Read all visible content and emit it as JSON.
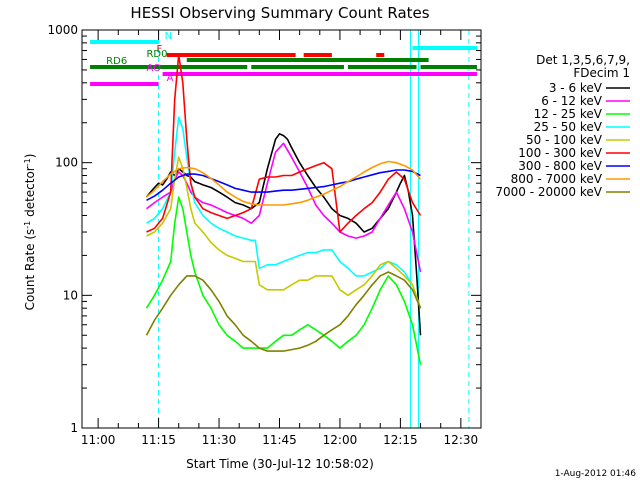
{
  "chart_data": {
    "type": "line",
    "title": "HESSI Observing Summary Count Rates",
    "xlabel": "Start Time (30-Jul-12 10:58:02)",
    "ylabel_main": "Count Rate (s",
    "ylabel_sup1": "-1",
    "ylabel_mid": " detector",
    "ylabel_sup2": "-1",
    "ylabel_end": ")",
    "yscale": "log",
    "ylim": [
      1,
      1000
    ],
    "xlim_minutes": [
      -4,
      95
    ],
    "x_ticks": [
      {
        "m": 0,
        "label": "11:00"
      },
      {
        "m": 15,
        "label": "11:15"
      },
      {
        "m": 30,
        "label": "11:30"
      },
      {
        "m": 45,
        "label": "11:45"
      },
      {
        "m": 60,
        "label": "12:00"
      },
      {
        "m": 75,
        "label": "12:15"
      },
      {
        "m": 90,
        "label": "12:30"
      }
    ],
    "y_ticks": [
      {
        "v": 1,
        "label": "1"
      },
      {
        "v": 10,
        "label": "10"
      },
      {
        "v": 100,
        "label": "100"
      },
      {
        "v": 1000,
        "label": "1000"
      }
    ],
    "legend_header": [
      "Det 1,3,5,6,7,9,",
      "FDecim 1"
    ],
    "legend_position": "right",
    "series": [
      {
        "name": "3 - 6 keV",
        "color": "#000000",
        "x": [
          12,
          13,
          14,
          15,
          16,
          17,
          18,
          19,
          20,
          21,
          22,
          23,
          24,
          25,
          26,
          28,
          30,
          32,
          34,
          36,
          38,
          40,
          42,
          44,
          45,
          46,
          47,
          48,
          50,
          52,
          54,
          56,
          58,
          60,
          62,
          64,
          66,
          68,
          70,
          72,
          74,
          75,
          76,
          77,
          78,
          79,
          80
        ],
        "y": [
          55,
          60,
          65,
          70,
          68,
          75,
          85,
          80,
          90,
          85,
          80,
          78,
          72,
          70,
          68,
          65,
          60,
          55,
          50,
          48,
          45,
          50,
          90,
          150,
          165,
          160,
          150,
          130,
          100,
          80,
          65,
          55,
          45,
          40,
          38,
          35,
          30,
          32,
          38,
          45,
          60,
          70,
          80,
          60,
          40,
          15,
          5
        ]
      },
      {
        "name": "6 - 12 keV",
        "color": "#ff00ff",
        "x": [
          12,
          14,
          16,
          18,
          19,
          20,
          21,
          22,
          23,
          24,
          26,
          28,
          30,
          32,
          34,
          36,
          38,
          40,
          42,
          44,
          46,
          48,
          50,
          52,
          54,
          56,
          58,
          60,
          62,
          64,
          66,
          68,
          70,
          72,
          74,
          76,
          78,
          80
        ],
        "y": [
          45,
          50,
          55,
          60,
          75,
          85,
          80,
          70,
          60,
          55,
          50,
          48,
          45,
          42,
          40,
          38,
          35,
          40,
          70,
          120,
          140,
          110,
          85,
          65,
          48,
          40,
          35,
          30,
          28,
          27,
          28,
          30,
          38,
          48,
          60,
          45,
          30,
          15
        ]
      },
      {
        "name": "12 - 25 keV",
        "color": "#00ff00",
        "x": [
          12,
          14,
          16,
          18,
          19,
          20,
          21,
          22,
          23,
          24,
          26,
          28,
          30,
          32,
          34,
          36,
          38,
          40,
          42,
          44,
          46,
          48,
          50,
          52,
          54,
          56,
          58,
          60,
          62,
          64,
          66,
          68,
          70,
          72,
          74,
          76,
          78,
          80
        ],
        "y": [
          8,
          10,
          13,
          18,
          35,
          55,
          45,
          30,
          20,
          15,
          10,
          8,
          6,
          5,
          4.5,
          4,
          4,
          4,
          4,
          4.5,
          5,
          5,
          5.5,
          6,
          5.5,
          5,
          4.5,
          4,
          4.5,
          5,
          6,
          8,
          11,
          14,
          12,
          9,
          6,
          3
        ]
      },
      {
        "name": "25 - 50 keV",
        "color": "#00ffff",
        "x": [
          12,
          14,
          16,
          18,
          19,
          20,
          21,
          22,
          23,
          24,
          26,
          28,
          30,
          32,
          34,
          36,
          38,
          39,
          40,
          42,
          44,
          46,
          48,
          50,
          52,
          54,
          56,
          58,
          60,
          62,
          64,
          66,
          68,
          70,
          72,
          74,
          76,
          78,
          80
        ],
        "y": [
          35,
          38,
          45,
          60,
          120,
          220,
          180,
          110,
          70,
          50,
          40,
          35,
          32,
          30,
          28,
          27,
          26,
          26,
          16,
          17,
          17,
          18,
          19,
          20,
          21,
          21,
          22,
          22,
          18,
          16,
          14,
          14,
          15,
          16,
          18,
          17,
          15,
          12,
          8
        ]
      },
      {
        "name": "50 - 100 keV",
        "color": "#c8c800",
        "x": [
          12,
          14,
          16,
          18,
          19,
          20,
          21,
          22,
          23,
          24,
          26,
          28,
          30,
          32,
          34,
          36,
          38,
          39,
          40,
          42,
          44,
          46,
          48,
          50,
          52,
          54,
          56,
          58,
          60,
          62,
          64,
          66,
          68,
          70,
          72,
          74,
          76,
          78,
          80
        ],
        "y": [
          28,
          30,
          35,
          45,
          75,
          110,
          90,
          65,
          45,
          35,
          30,
          25,
          22,
          20,
          19,
          18,
          18,
          18,
          12,
          11,
          11,
          11,
          12,
          13,
          13,
          14,
          14,
          14,
          11,
          10,
          11,
          12,
          14,
          17,
          18,
          16,
          14,
          12,
          8
        ]
      },
      {
        "name": "100 - 300 keV",
        "color": "#ff0000",
        "x": [
          12,
          14,
          16,
          18,
          19,
          20,
          21,
          22,
          23,
          24,
          26,
          28,
          30,
          32,
          34,
          36,
          38,
          40,
          42,
          44,
          46,
          48,
          50,
          52,
          54,
          56,
          58,
          60,
          62,
          64,
          66,
          68,
          70,
          72,
          74,
          76,
          78,
          80
        ],
        "y": [
          30,
          32,
          38,
          60,
          300,
          650,
          400,
          150,
          70,
          55,
          45,
          42,
          40,
          38,
          40,
          42,
          45,
          75,
          78,
          78,
          80,
          80,
          85,
          90,
          95,
          100,
          90,
          30,
          35,
          40,
          45,
          50,
          60,
          75,
          85,
          75,
          50,
          40
        ]
      },
      {
        "name": "300 - 800 keV",
        "color": "#0000ff",
        "x": [
          12,
          14,
          16,
          18,
          20,
          22,
          24,
          26,
          28,
          30,
          32,
          34,
          36,
          38,
          40,
          42,
          44,
          46,
          48,
          50,
          52,
          54,
          56,
          58,
          60,
          62,
          64,
          66,
          68,
          70,
          72,
          74,
          76,
          78,
          80
        ],
        "y": [
          52,
          56,
          62,
          70,
          78,
          82,
          82,
          80,
          76,
          72,
          68,
          64,
          62,
          60,
          60,
          60,
          61,
          62,
          62,
          63,
          64,
          65,
          66,
          68,
          70,
          72,
          75,
          78,
          81,
          84,
          86,
          88,
          88,
          86,
          80
        ]
      },
      {
        "name": "800 - 7000 keV",
        "color": "#ff9900",
        "x": [
          12,
          14,
          16,
          18,
          20,
          22,
          24,
          26,
          28,
          30,
          32,
          34,
          36,
          38,
          40,
          42,
          44,
          46,
          48,
          50,
          52,
          54,
          56,
          58,
          60,
          62,
          64,
          66,
          68,
          70,
          72,
          74,
          76,
          78,
          80
        ],
        "y": [
          55,
          62,
          72,
          82,
          90,
          92,
          90,
          84,
          76,
          68,
          60,
          55,
          51,
          49,
          48,
          48,
          48,
          48,
          49,
          50,
          52,
          55,
          58,
          62,
          66,
          72,
          78,
          85,
          92,
          98,
          102,
          100,
          95,
          88,
          75
        ]
      },
      {
        "name": "7000 - 20000 keV",
        "color": "#808000",
        "x": [
          12,
          14,
          16,
          18,
          20,
          22,
          24,
          26,
          28,
          30,
          32,
          34,
          36,
          38,
          40,
          42,
          44,
          46,
          48,
          50,
          52,
          54,
          56,
          58,
          60,
          62,
          64,
          66,
          68,
          70,
          72,
          74,
          76,
          78,
          80
        ],
        "y": [
          5,
          6.5,
          8,
          10,
          12,
          14,
          14,
          13,
          11,
          9,
          7,
          6,
          5,
          4.5,
          4,
          3.8,
          3.8,
          3.8,
          3.9,
          4,
          4.2,
          4.5,
          5,
          5.5,
          6,
          7,
          8.5,
          10,
          12,
          14,
          15,
          14,
          13,
          11,
          8
        ]
      }
    ],
    "flag_bars": [
      {
        "label": "N",
        "color": "#00ffff",
        "label_m": 16.5,
        "rows": [
          [
            -2,
            15
          ]
        ]
      },
      {
        "label": "N",
        "color": "#00ffff",
        "label_m": null,
        "rows": [
          [
            78,
            94
          ]
        ]
      },
      {
        "label": "F",
        "color": "#ff0000",
        "label_m": 14.5,
        "rows": [
          [
            17,
            49
          ],
          [
            51,
            58
          ],
          [
            69,
            71
          ]
        ]
      },
      {
        "label": "RD0",
        "color": "#008000",
        "label_m": 12,
        "rows": [
          [
            22,
            82
          ]
        ]
      },
      {
        "label": "RD6",
        "color": "#008000",
        "label_m": 2,
        "rows": [
          [
            -2,
            37
          ],
          [
            38,
            61
          ],
          [
            62,
            79
          ],
          [
            80,
            94
          ]
        ]
      },
      {
        "label": "AO",
        "color": "#ff00ff",
        "label_m": 12,
        "rows": [
          [
            16,
            94
          ]
        ]
      },
      {
        "label": "A",
        "color": "#ff00ff",
        "label_m": 17,
        "rows": [
          [
            -2,
            15
          ]
        ]
      }
    ],
    "vlines": [
      {
        "m": 15,
        "color": "#00ffff",
        "style": "dashed"
      },
      {
        "m": 77.5,
        "color": "#00ffff",
        "style": "solid"
      },
      {
        "m": 79.5,
        "color": "#00ffff",
        "style": "solid"
      },
      {
        "m": 92,
        "color": "#00ffff",
        "style": "dashed"
      }
    ],
    "grid": false,
    "footer_date": "1-Aug-2012 01:46"
  }
}
